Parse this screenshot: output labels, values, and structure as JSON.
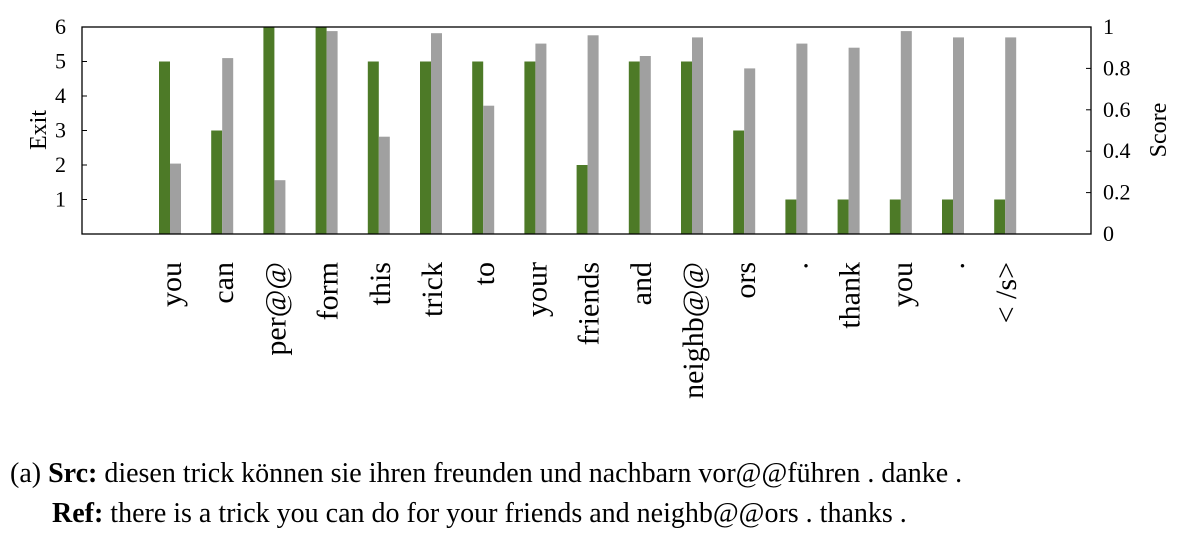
{
  "chart_data": {
    "type": "bar",
    "categories": [
      "you",
      "can",
      "per@@",
      "form",
      "this",
      "trick",
      "to",
      "your",
      "friends",
      "and",
      "neighb@@",
      "ors",
      ".",
      "thank",
      "you",
      ".",
      "< /s>"
    ],
    "series": [
      {
        "name": "",
        "axis": "left",
        "color": "#4d7a27",
        "values": [
          5,
          3,
          6,
          6,
          5,
          5,
          5,
          5,
          2,
          5,
          5,
          3,
          1,
          1,
          1,
          1,
          1
        ]
      },
      {
        "name": "",
        "axis": "right",
        "color": "#a0a0a0",
        "values": [
          0.34,
          0.85,
          0.26,
          0.98,
          0.47,
          0.97,
          0.62,
          0.92,
          0.96,
          0.86,
          0.95,
          0.8,
          0.92,
          0.9,
          0.98,
          0.95,
          0.95
        ]
      }
    ],
    "ylabel_left": "Exit",
    "ylabel_right": "Score",
    "ylim_left": [
      0,
      6
    ],
    "ylim_right": [
      0,
      1
    ],
    "yticks_left": [
      "1",
      "2",
      "3",
      "4",
      "5",
      "6"
    ],
    "yticks_left_values": [
      1,
      2,
      3,
      4,
      5,
      6
    ],
    "yticks_right": [
      "0",
      "0.2",
      "0.4",
      "0.6",
      "0.8",
      "1"
    ],
    "yticks_right_values": [
      0,
      0.2,
      0.4,
      0.6,
      0.8,
      1
    ],
    "grid": false,
    "legend": "none"
  },
  "caption": {
    "prefix": "(a)",
    "src_label": "Src:",
    "src_text": " diesen trick können sie ihren freunden und nachbarn vor@@führen . danke .",
    "ref_label": "Ref:",
    "ref_text": " there is a trick you can do for your friends and neighb@@ors . thanks ."
  }
}
